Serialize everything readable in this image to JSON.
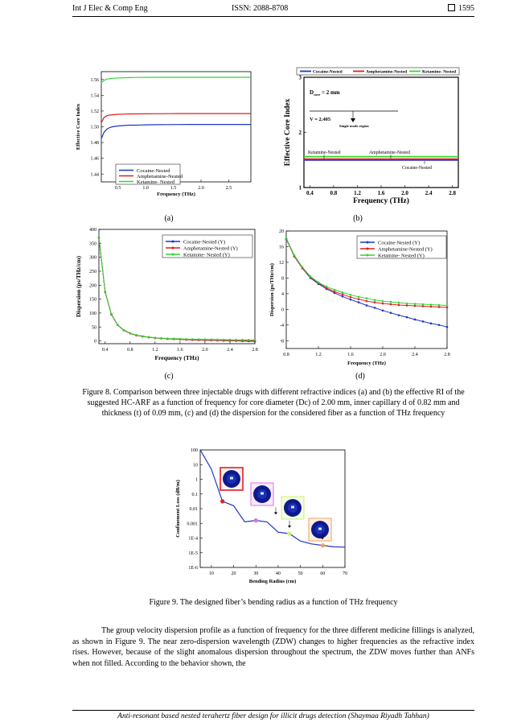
{
  "header": {
    "journal": "Int J Elec & Comp Eng",
    "issn": "ISSN: 2088-8708",
    "page": "1595"
  },
  "colors": {
    "cocaine": "#1f35c8",
    "amphetamine": "#e01e1e",
    "ketamine": "#33d633"
  },
  "figure8": {
    "caption": "Figure 8. Comparison between three injectable drugs with different refractive indices (a) and (b) the effective RI of the suggested HC-ARF as a function of frequency for core diameter (Dc) of 2.00 mm, inner capillary d of 0.82 mm and thickness (t) of 0.09 mm, (c) and (d) the dispersion for the considered fiber as a function of THz frequency",
    "labels": {
      "a": "(a)",
      "b": "(b)",
      "c": "(c)",
      "d": "(d)"
    }
  },
  "chart_data": [
    {
      "id": "a",
      "type": "line",
      "xlabel": "Frequency (THz)",
      "ylabel": "Effective Core Index",
      "xlim": [
        0.2,
        2.9
      ],
      "ylim": [
        1.43,
        1.57
      ],
      "xticks": [
        0.5,
        1.0,
        1.5,
        2.0,
        2.5
      ],
      "xtick_labels": [
        "0.5",
        "1.0",
        "1.5",
        "2.0",
        "2.5"
      ],
      "yticks": [
        1.44,
        1.46,
        1.48,
        1.5,
        1.52,
        1.54,
        1.56
      ],
      "ytick_labels": [
        "1.44",
        "1.46",
        "1.48",
        "1.50",
        "1.52",
        "1.54",
        "1.56"
      ],
      "legend": "bottom-left",
      "x": [
        0.2,
        0.25,
        0.3,
        0.35,
        0.4,
        0.5,
        0.6,
        0.7,
        0.8,
        0.9,
        1.0,
        1.2,
        1.4,
        1.6,
        1.8,
        2.0,
        2.2,
        2.4,
        2.6,
        2.8,
        2.9
      ],
      "series": [
        {
          "name": "Cocaine-Nested",
          "color": "#1f35c8",
          "values": [
            1.485,
            1.493,
            1.497,
            1.499,
            1.5,
            1.501,
            1.5015,
            1.502,
            1.502,
            1.5022,
            1.5025,
            1.5027,
            1.5028,
            1.5029,
            1.503,
            1.503,
            1.503,
            1.503,
            1.503,
            1.503,
            1.503
          ]
        },
        {
          "name": "Amphetamine-Nested",
          "color": "#e01e1e",
          "values": [
            1.505,
            1.512,
            1.514,
            1.5148,
            1.5152,
            1.5158,
            1.516,
            1.5162,
            1.5163,
            1.5164,
            1.5165,
            1.5166,
            1.5167,
            1.5168,
            1.5168,
            1.5168,
            1.5168,
            1.5168,
            1.5168,
            1.5168,
            1.5168
          ]
        },
        {
          "name": "Ketamine- Nested",
          "color": "#33d633",
          "values": [
            1.556,
            1.559,
            1.5605,
            1.561,
            1.5615,
            1.562,
            1.5622,
            1.5624,
            1.5625,
            1.5626,
            1.5627,
            1.5628,
            1.5628,
            1.5628,
            1.5628,
            1.5628,
            1.5628,
            1.5628,
            1.5628,
            1.5628,
            1.5628
          ]
        }
      ]
    },
    {
      "id": "b",
      "type": "line",
      "xlabel": "Frequency (THz)",
      "ylabel": "Effective Core Index",
      "xlim": [
        0.3,
        2.9
      ],
      "ylim": [
        1,
        3
      ],
      "xticks": [
        0.4,
        0.8,
        1.2,
        1.6,
        2.0,
        2.4,
        2.8
      ],
      "xtick_labels": [
        "0.4",
        "0.8",
        "1.2",
        "1.6",
        "2.0",
        "2.4",
        "2.8"
      ],
      "yticks": [
        1,
        2,
        3
      ],
      "ytick_labels": [
        "1",
        "2",
        "3"
      ],
      "legend": "top",
      "x": [
        0.3,
        2.9
      ],
      "series": [
        {
          "name": "Cocaine-Nested",
          "color": "#1f35c8",
          "values": [
            1.5,
            1.5
          ]
        },
        {
          "name": "Amphetamine-Nested",
          "color": "#e01e1e",
          "values": [
            1.515,
            1.515
          ]
        },
        {
          "name": "Ketamine- Nested",
          "color": "#33d633",
          "values": [
            1.56,
            1.56
          ]
        }
      ],
      "annotations": {
        "dcore": "D",
        "dcore_sub": "core",
        "dcore_val": " = 2 mm",
        "v": "V = 2.405",
        "single_mode": "Single mode region",
        "ketamine": "Ketamine-Nested",
        "amphetamine": "Amphetamine-Nested",
        "cocaine": "Cocaine-Nested"
      }
    },
    {
      "id": "c",
      "type": "line",
      "xlabel": "Frequency (THz)",
      "ylabel": "Dispersion (ps/THz/cm)",
      "xlim": [
        0.3,
        2.8
      ],
      "ylim": [
        -10,
        400
      ],
      "xticks": [
        0.4,
        0.8,
        1.2,
        1.6,
        2.0,
        2.4,
        2.8
      ],
      "xtick_labels": [
        "0.4",
        "0.8",
        "1.2",
        "1.6",
        "2.0",
        "2.4",
        "2.8"
      ],
      "yticks": [
        0,
        50,
        100,
        150,
        200,
        250,
        300,
        350,
        400
      ],
      "ytick_labels": [
        "0",
        "50",
        "100",
        "150",
        "200",
        "250",
        "300",
        "350",
        "400"
      ],
      "legend": "top-right",
      "x": [
        0.3,
        0.4,
        0.5,
        0.6,
        0.7,
        0.8,
        0.9,
        1.0,
        1.1,
        1.2,
        1.3,
        1.4,
        1.5,
        1.6,
        1.7,
        1.8,
        1.9,
        2.0,
        2.1,
        2.2,
        2.3,
        2.4,
        2.5,
        2.6,
        2.7,
        2.8
      ],
      "series": [
        {
          "name": "Cocaine-Nested (Y)",
          "color": "#1f35c8",
          "values": [
            370,
            175,
            95,
            57,
            38,
            27,
            20,
            16,
            13,
            10.5,
            9,
            7.5,
            6.5,
            5.5,
            4.5,
            3.5,
            3,
            2.5,
            2,
            1.5,
            1,
            0.5,
            0,
            -0.5,
            -1,
            -1.5
          ]
        },
        {
          "name": "Amphetamine-Nested (Y)",
          "color": "#e01e1e",
          "values": [
            370,
            175,
            95,
            57,
            38,
            27,
            20,
            16,
            13,
            10.5,
            9,
            7.5,
            6.5,
            5.5,
            4.5,
            3.7,
            3.2,
            2.8,
            2.4,
            2,
            1.6,
            1.2,
            0.9,
            0.6,
            0.3,
            0
          ]
        },
        {
          "name": "Ketamine- Nested (Y)",
          "color": "#33d633",
          "values": [
            372,
            177,
            97,
            58,
            39,
            28,
            21,
            17,
            14,
            11.5,
            10,
            8.8,
            8,
            7.2,
            6.6,
            6,
            5.6,
            5.2,
            4.9,
            4.6,
            4.4,
            4.2,
            4,
            3.8,
            3.6,
            3.5
          ]
        }
      ]
    },
    {
      "id": "d",
      "type": "line",
      "xlabel": "Frequency (THz)",
      "ylabel": "Dispersion (ps/THz/cm)",
      "xlim": [
        0.8,
        2.8
      ],
      "ylim": [
        -10,
        20
      ],
      "xticks": [
        0.8,
        1.2,
        1.6,
        2.0,
        2.4,
        2.8
      ],
      "xtick_labels": [
        "0.8",
        "1.2",
        "1.6",
        "2.0",
        "2.4",
        "2.8"
      ],
      "yticks": [
        -8,
        -4,
        0,
        4,
        8,
        12,
        16,
        20
      ],
      "ytick_labels": [
        "-8",
        "-4",
        "0",
        "4",
        "8",
        "12",
        "16",
        "20"
      ],
      "legend": "top-right",
      "x": [
        0.8,
        0.9,
        1.0,
        1.1,
        1.2,
        1.3,
        1.4,
        1.5,
        1.6,
        1.7,
        1.8,
        1.9,
        2.0,
        2.1,
        2.2,
        2.3,
        2.4,
        2.5,
        2.6,
        2.7,
        2.8
      ],
      "series": [
        {
          "name": "Cocaine-Nested (Y)",
          "color": "#1f35c8",
          "values": [
            18,
            13.5,
            10.5,
            8,
            6.5,
            5.2,
            4.2,
            3.3,
            2.5,
            1.8,
            1.0,
            0.4,
            -0.3,
            -0.9,
            -1.5,
            -2.0,
            -2.6,
            -3.1,
            -3.6,
            -4.0,
            -4.5
          ]
        },
        {
          "name": "Amphetamine-Nested (Y)",
          "color": "#e01e1e",
          "values": [
            18,
            13.6,
            10.6,
            8.2,
            6.7,
            5.5,
            4.5,
            3.8,
            3.1,
            2.6,
            2.1,
            1.8,
            1.5,
            1.3,
            1.1,
            1.0,
            0.9,
            0.8,
            0.7,
            0.6,
            0.5
          ]
        },
        {
          "name": "Ketamine- Nested (Y)",
          "color": "#33d633",
          "values": [
            18.2,
            13.8,
            10.8,
            8.4,
            6.9,
            5.8,
            5.0,
            4.3,
            3.7,
            3.2,
            2.8,
            2.4,
            2.1,
            1.9,
            1.7,
            1.5,
            1.4,
            1.3,
            1.2,
            1.1,
            1.0
          ]
        }
      ]
    },
    {
      "id": "fig9",
      "type": "line",
      "xlabel": "Bending Radius (cm)",
      "ylabel": "Confinement Loss (dB/m)",
      "xlim": [
        5,
        70
      ],
      "ylim_log10": [
        -6,
        2
      ],
      "xticks": [
        10,
        20,
        30,
        40,
        50,
        60,
        70
      ],
      "xtick_labels": [
        "10",
        "20",
        "30",
        "40",
        "50",
        "60",
        "70"
      ],
      "yticks_log10": [
        -6,
        -5,
        -4,
        -3,
        -2,
        -1,
        0,
        1,
        2
      ],
      "ytick_labels": [
        "1E-6",
        "1E-5",
        "1E-4",
        "0.001",
        "0.01",
        "0.1",
        "1",
        "10",
        "100"
      ],
      "x": [
        5,
        10,
        15,
        20,
        25,
        30,
        35,
        40,
        45,
        50,
        55,
        60,
        65,
        70
      ],
      "series": [
        {
          "name": "",
          "color": "#1f35c8",
          "log10_values": [
            2.0,
            0.7,
            -1.5,
            -1.8,
            -2.9,
            -2.8,
            -2.9,
            -3.6,
            -3.7,
            -4.2,
            -4.4,
            -4.5,
            -4.6,
            -4.62
          ]
        }
      ],
      "highlight_points": [
        {
          "x": 15,
          "log10_y": -1.5,
          "color": "#e02020"
        },
        {
          "x": 30,
          "log10_y": -2.8,
          "color": "#e070e0"
        },
        {
          "x": 45,
          "log10_y": -3.7,
          "color": "#c8f070"
        },
        {
          "x": 60,
          "log10_y": -4.5,
          "color": "#f0a060"
        }
      ]
    }
  ],
  "figure9": {
    "caption": "Figure 9. The designed fiber’s bending radius as a function of THz frequency"
  },
  "body": {
    "paragraph": "The group velocity dispersion profile as a function of frequency for the three different medicine fillings is analyzed, as shown in Figure 9. The near zero-dispersion wavelength (ZDW) changes to higher frequencies as the refractive index rises. However, because of the slight anomalous dispersion throughout the spectrum, the ZDW moves further than ANFs when not filled. According to the behavior shown, the"
  },
  "footer": {
    "text": "Anti-resonant based nested terahertz fiber design for illicit drugs detection (Shaymaa Riyadh Tahhan)"
  }
}
